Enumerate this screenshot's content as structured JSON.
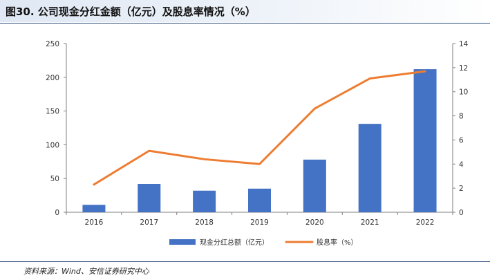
{
  "title": "图30. 公司现金分红金额（亿元）及股息率情况（%）",
  "source": "资料来源：Wind、安信证券研究中心",
  "colors": {
    "bar": "#4472c4",
    "line": "#ed7d31",
    "axis": "#7f7f7f"
  },
  "chart_data": {
    "type": "bar+line",
    "categories": [
      "2016",
      "2017",
      "2018",
      "2019",
      "2020",
      "2021",
      "2022"
    ],
    "series": [
      {
        "name": "现金分红总额（亿元）",
        "type": "bar",
        "axis": "left",
        "values": [
          11,
          42,
          32,
          35,
          78,
          131,
          212
        ]
      },
      {
        "name": "股息率（%）",
        "type": "line",
        "axis": "right",
        "values": [
          2.3,
          5.1,
          4.4,
          4.0,
          8.6,
          11.1,
          11.7
        ]
      }
    ],
    "ylim_left": [
      0,
      250
    ],
    "yticks_left": [
      "0",
      "50",
      "100",
      "150",
      "200",
      "250"
    ],
    "ylim_right": [
      0,
      14
    ],
    "yticks_right": [
      "0",
      "2",
      "4",
      "6",
      "8",
      "10",
      "12",
      "14"
    ],
    "grid": false,
    "legend": "bottom"
  }
}
